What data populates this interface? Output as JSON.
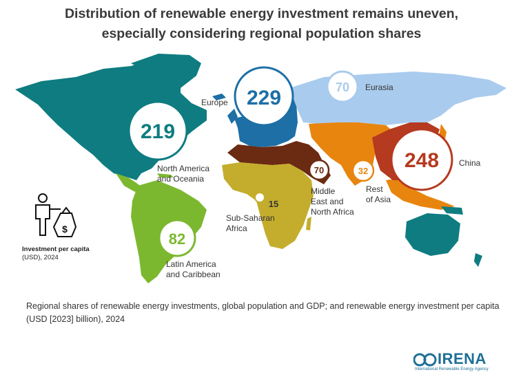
{
  "title": {
    "line1": "Distribution of renewable energy investment remains uneven,",
    "line2": "especially considering regional population shares"
  },
  "regions": [
    {
      "id": "north-america",
      "name_line1": "North America",
      "name_line2": "and Oceania",
      "value": "219",
      "color": "#0e7c80"
    },
    {
      "id": "europe",
      "name_line1": "Europe",
      "name_line2": "",
      "value": "229",
      "color": "#1d6fa6"
    },
    {
      "id": "eurasia",
      "name_line1": "Eurasia",
      "name_line2": "",
      "value": "70",
      "color": "#a9cbed"
    },
    {
      "id": "china",
      "name_line1": "China",
      "name_line2": "",
      "value": "248",
      "color": "#b53a1f"
    },
    {
      "id": "rest-of-asia",
      "name_line1": "Rest",
      "name_line2": "of Asia",
      "value": "32",
      "color": "#e8850f"
    },
    {
      "id": "mena",
      "name_line1": "Middle",
      "name_line2": "East and",
      "name_line3": "North Africa",
      "value": "70",
      "color": "#6b2a12"
    },
    {
      "id": "sub-saharan",
      "name_line1": "Sub-Saharan",
      "name_line2": "Africa",
      "value": "15",
      "color": "#c4ad2c"
    },
    {
      "id": "latin-america",
      "name_line1": "Latin America",
      "name_line2": "and Caribbean",
      "value": "82",
      "color": "#7cb82f"
    }
  ],
  "legend": {
    "label": "Investment per capita",
    "unit": "(USD), 2024",
    "icon": "person-with-money-bag-icon"
  },
  "caption": "Regional shares of renewable energy investments, global population and GDP; and renewable energy investment per capita (USD [2023] billion), 2024",
  "logo": {
    "name": "IRENA",
    "subtitle": "International Renewable Energy Agency",
    "color": "#1f6f96"
  }
}
